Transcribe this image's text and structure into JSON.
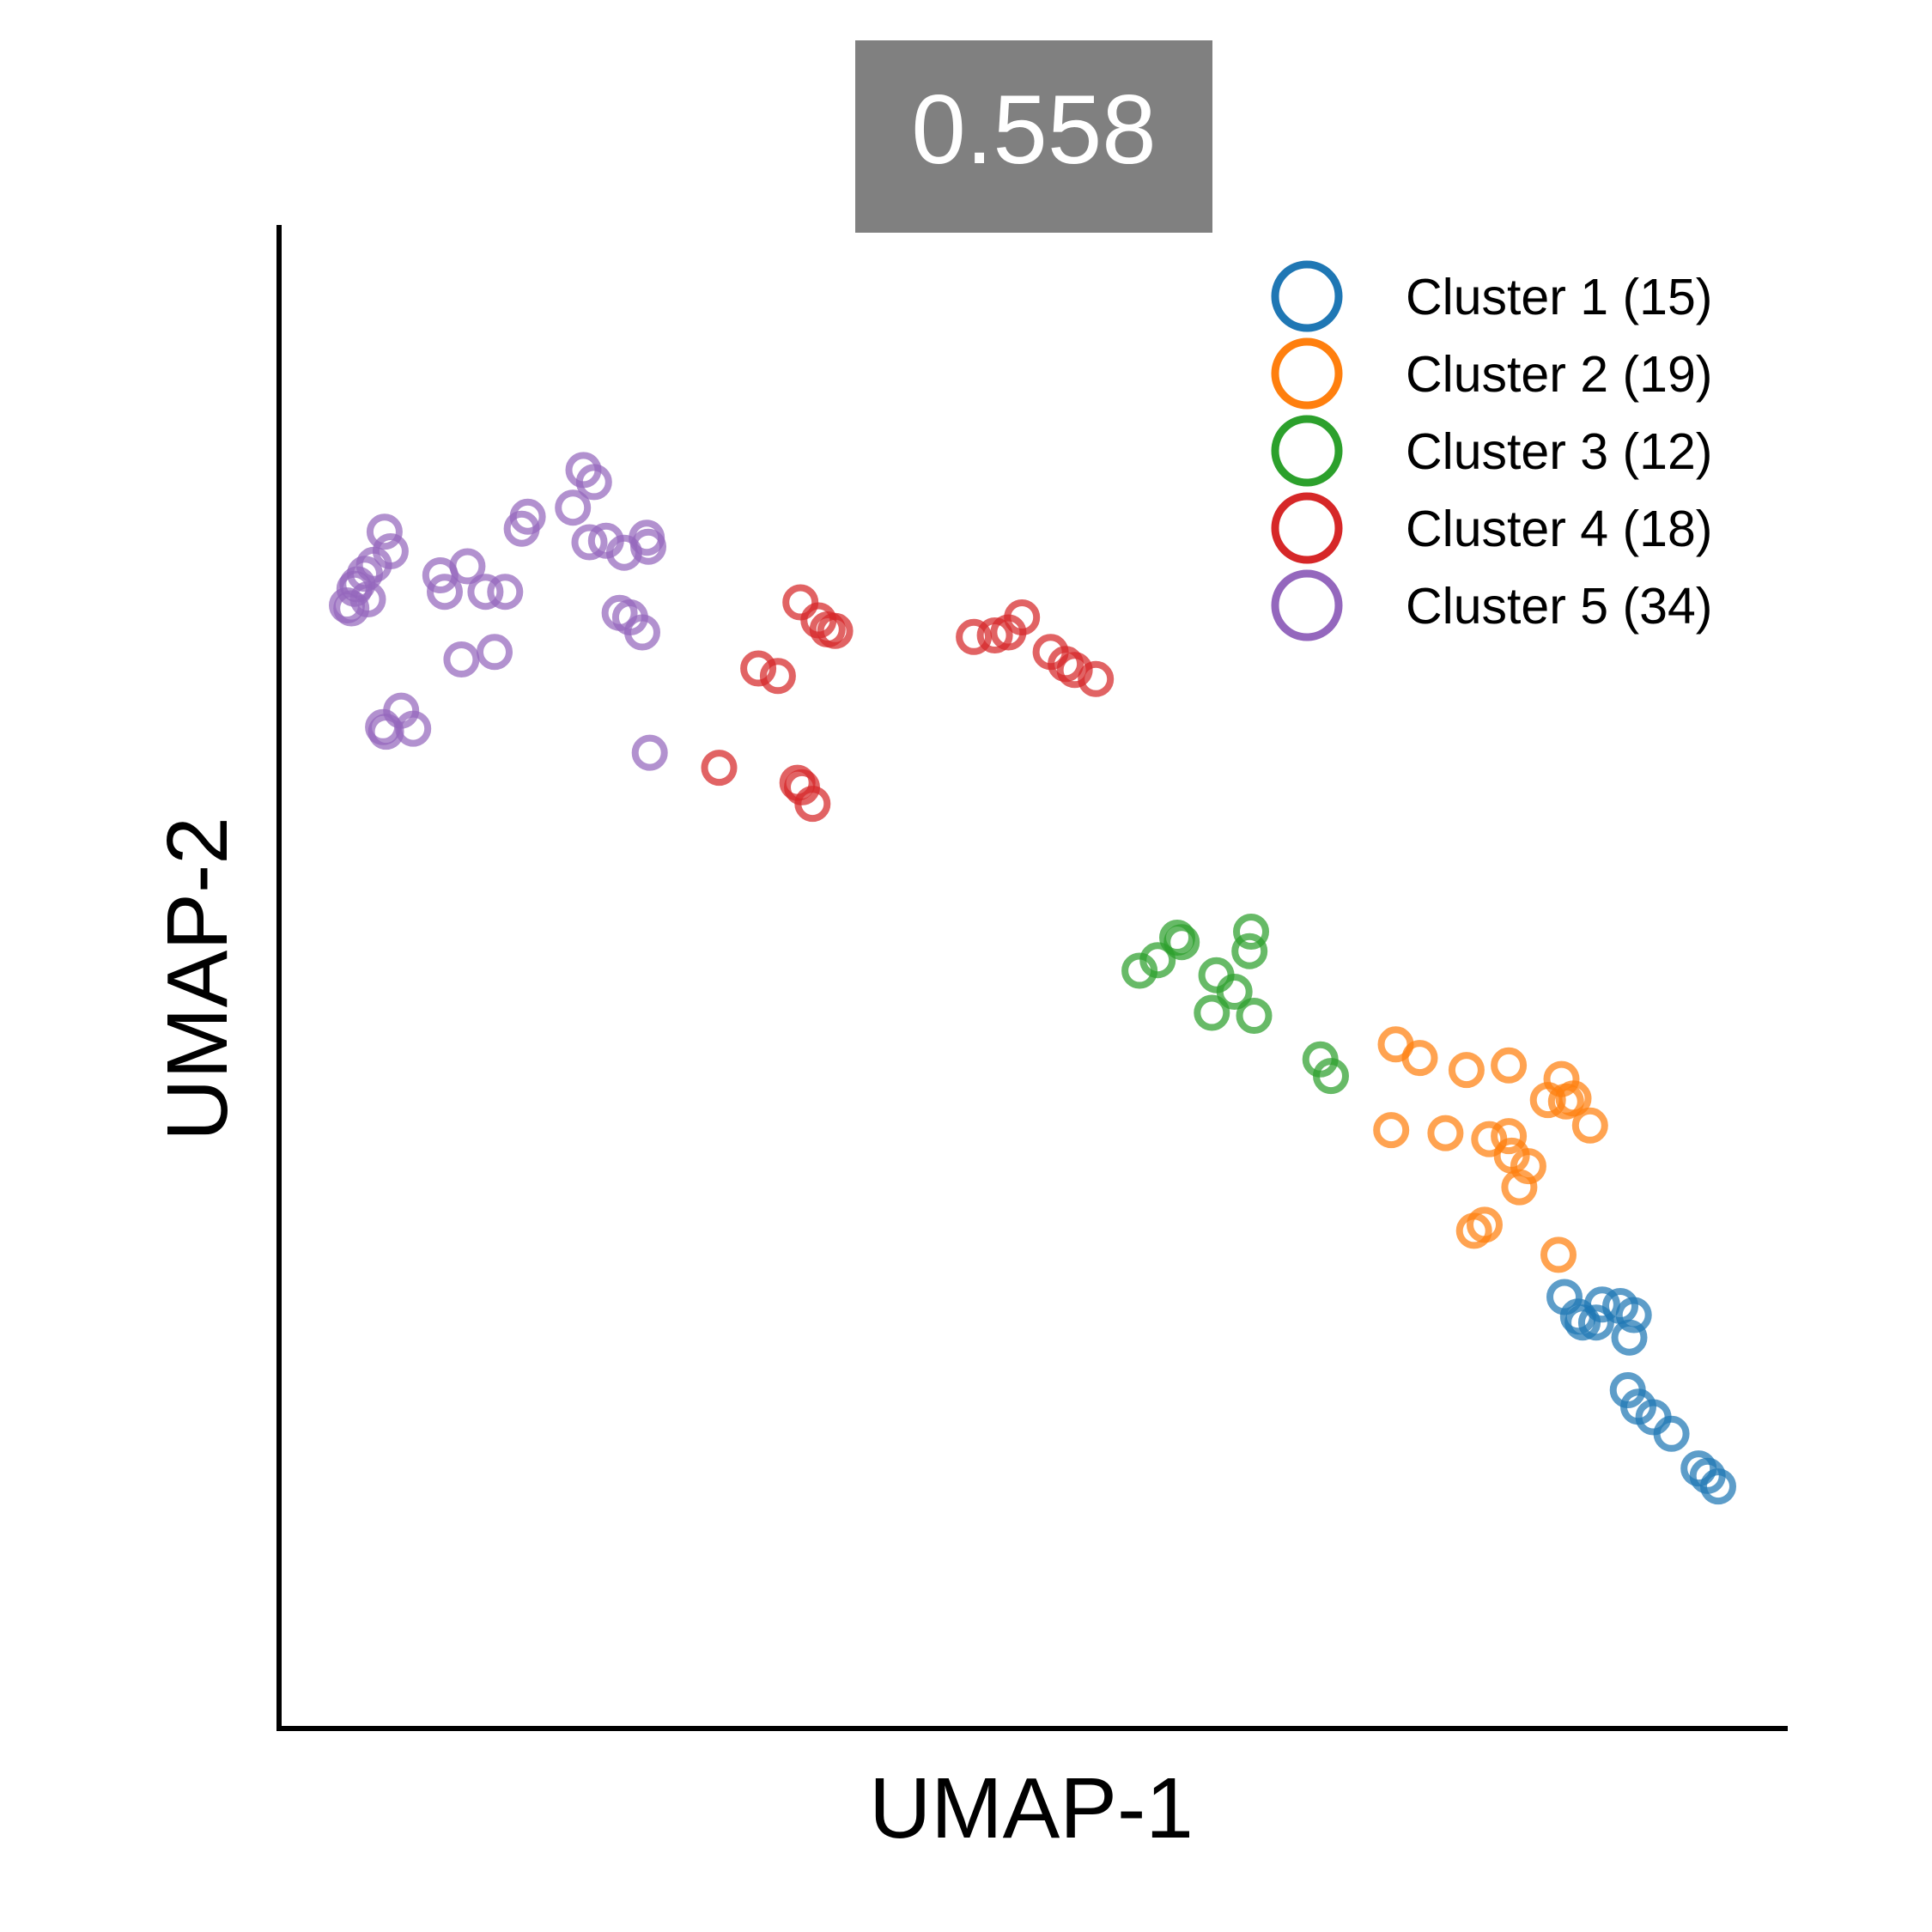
{
  "chart_data": {
    "type": "scatter",
    "title": "0.558",
    "xlabel": "UMAP-1",
    "ylabel": "UMAP-2",
    "xlim": [
      0,
      100
    ],
    "ylim": [
      0,
      100
    ],
    "ticks": "none",
    "grid": false,
    "spines": [
      "left",
      "bottom"
    ],
    "marker": "open-circle",
    "legend_position": "top-right",
    "series": [
      {
        "name": "Cluster 1 (15)",
        "color": "#1f77b4",
        "points": [
          [
            89.6,
            26.0
          ],
          [
            89.9,
            27.5
          ],
          [
            85.3,
            28.7
          ],
          [
            86.2,
            27.4
          ],
          [
            89.0,
            28.1
          ],
          [
            86.5,
            27.0
          ],
          [
            87.8,
            28.2
          ],
          [
            87.4,
            27.0
          ],
          [
            89.5,
            22.5
          ],
          [
            90.2,
            21.4
          ],
          [
            91.2,
            20.7
          ],
          [
            92.4,
            19.6
          ],
          [
            94.2,
            17.3
          ],
          [
            95.5,
            16.1
          ],
          [
            94.8,
            16.8
          ]
        ]
      },
      {
        "name": "Cluster 2 (19)",
        "color": "#ff7f0e",
        "points": [
          [
            74.1,
            45.5
          ],
          [
            75.7,
            44.6
          ],
          [
            78.8,
            43.8
          ],
          [
            81.6,
            44.1
          ],
          [
            85.1,
            43.2
          ],
          [
            85.9,
            41.9
          ],
          [
            84.2,
            41.8
          ],
          [
            87.0,
            40.1
          ],
          [
            73.8,
            39.8
          ],
          [
            77.4,
            39.6
          ],
          [
            80.3,
            39.2
          ],
          [
            81.6,
            39.4
          ],
          [
            81.8,
            38.1
          ],
          [
            82.9,
            37.4
          ],
          [
            82.3,
            36.0
          ],
          [
            79.3,
            33.1
          ],
          [
            80.0,
            33.5
          ],
          [
            84.9,
            31.5
          ],
          [
            85.4,
            41.7
          ]
        ]
      },
      {
        "name": "Cluster 3 (12)",
        "color": "#2ca02c",
        "points": [
          [
            59.9,
            52.3
          ],
          [
            59.6,
            52.6
          ],
          [
            58.3,
            51.1
          ],
          [
            57.1,
            50.4
          ],
          [
            62.2,
            50.1
          ],
          [
            63.4,
            49.0
          ],
          [
            64.4,
            51.7
          ],
          [
            64.5,
            53.0
          ],
          [
            61.9,
            47.6
          ],
          [
            64.7,
            47.4
          ],
          [
            69.1,
            44.5
          ],
          [
            69.8,
            43.4
          ]
        ]
      },
      {
        "name": "Cluster 4 (18)",
        "color": "#d62728",
        "points": [
          [
            34.6,
            74.9
          ],
          [
            35.8,
            73.7
          ],
          [
            36.4,
            73.1
          ],
          [
            36.9,
            73.0
          ],
          [
            31.8,
            70.5
          ],
          [
            33.1,
            70.0
          ],
          [
            46.1,
            72.6
          ],
          [
            47.5,
            72.7
          ],
          [
            48.4,
            72.9
          ],
          [
            49.3,
            73.9
          ],
          [
            51.2,
            71.6
          ],
          [
            52.2,
            70.8
          ],
          [
            52.8,
            70.4
          ],
          [
            54.2,
            69.8
          ],
          [
            29.2,
            63.9
          ],
          [
            34.7,
            62.6
          ],
          [
            34.4,
            62.9
          ],
          [
            35.4,
            61.5
          ]
        ]
      },
      {
        "name": "Cluster 5 (34)",
        "color": "#9467bd",
        "points": [
          [
            20.2,
            83.7
          ],
          [
            20.9,
            82.9
          ],
          [
            19.5,
            81.2
          ],
          [
            16.1,
            79.8
          ],
          [
            16.5,
            80.6
          ],
          [
            20.6,
            78.9
          ],
          [
            21.7,
            79.0
          ],
          [
            22.9,
            78.2
          ],
          [
            24.5,
            78.6
          ],
          [
            24.4,
            79.2
          ],
          [
            6.3,
            77.4
          ],
          [
            7.4,
            78.3
          ],
          [
            5.0,
            75.8
          ],
          [
            5.7,
            76.8
          ],
          [
            7.0,
            79.6
          ],
          [
            5.2,
            76.1
          ],
          [
            4.5,
            74.7
          ],
          [
            4.8,
            74.5
          ],
          [
            5.9,
            75.1
          ],
          [
            11.0,
            75.6
          ],
          [
            12.5,
            77.3
          ],
          [
            13.7,
            75.6
          ],
          [
            15.0,
            75.6
          ],
          [
            10.7,
            76.7
          ],
          [
            22.6,
            74.2
          ],
          [
            24.1,
            72.9
          ],
          [
            23.3,
            73.9
          ],
          [
            12.1,
            71.1
          ],
          [
            14.3,
            71.6
          ],
          [
            6.9,
            66.6
          ],
          [
            7.1,
            66.3
          ],
          [
            8.1,
            67.7
          ],
          [
            8.9,
            66.5
          ],
          [
            24.6,
            64.9
          ]
        ]
      }
    ]
  }
}
